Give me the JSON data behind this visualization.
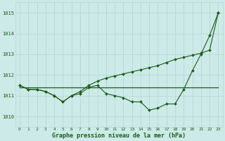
{
  "title": "Graphe pression niveau de la mer (hPa)",
  "background_color": "#cceae7",
  "grid_color": "#b8d8d5",
  "line_color": "#1a5c1a",
  "xlim": [
    -0.5,
    23.5
  ],
  "ylim": [
    1009.5,
    1015.5
  ],
  "yticks": [
    1010,
    1011,
    1012,
    1013,
    1014,
    1015
  ],
  "xticks": [
    0,
    1,
    2,
    3,
    4,
    5,
    6,
    7,
    8,
    9,
    10,
    11,
    12,
    13,
    14,
    15,
    16,
    17,
    18,
    19,
    20,
    21,
    22,
    23
  ],
  "series": {
    "main": [
      1011.5,
      1011.3,
      1011.3,
      1011.2,
      1011.0,
      1010.7,
      1011.0,
      1011.1,
      1011.4,
      1011.5,
      1011.1,
      1011.0,
      1010.9,
      1010.7,
      1010.7,
      1010.3,
      1010.4,
      1010.6,
      1010.6,
      1011.3,
      1012.2,
      1013.0,
      1013.9,
      1015.0
    ],
    "flat": [
      1011.4,
      1011.4,
      1011.4,
      1011.4,
      1011.4,
      1011.4,
      1011.4,
      1011.4,
      1011.4,
      1011.4,
      1011.4,
      1011.4,
      1011.4,
      1011.4,
      1011.4,
      1011.4,
      1011.4,
      1011.4,
      1011.4,
      1011.4,
      1011.4,
      1011.4,
      1011.4,
      1011.4
    ],
    "rising": [
      1011.5,
      1011.3,
      1011.3,
      1011.2,
      1011.0,
      1010.7,
      1011.0,
      1011.2,
      1011.5,
      1011.7,
      1011.85,
      1011.95,
      1012.05,
      1012.15,
      1012.25,
      1012.35,
      1012.45,
      1012.6,
      1012.75,
      1012.85,
      1012.95,
      1013.05,
      1013.2,
      1015.0
    ]
  }
}
